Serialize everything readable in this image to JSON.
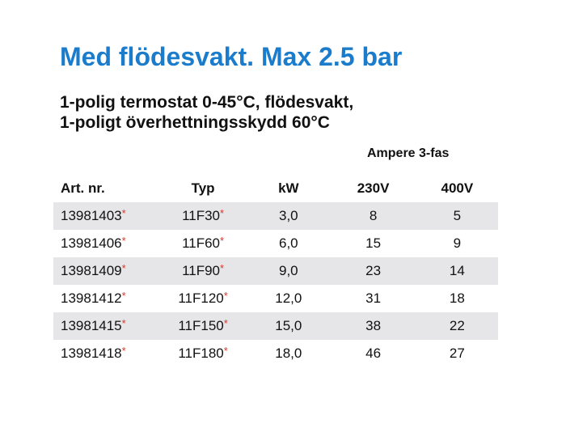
{
  "title": "Med flödesvakt. Max 2.5 bar",
  "subtitle_lines": [
    "1-polig termostat 0-45°C, flödesvakt,",
    "1-poligt överhettningsskydd 60°C"
  ],
  "group_header": "Ampere 3-fas",
  "colors": {
    "title": "#1b7ccc",
    "asterisk": "#d8352a",
    "band": "#e6e6e8"
  },
  "table": {
    "headers": [
      "Art. nr.",
      "Typ",
      "kW",
      "230V",
      "400V"
    ],
    "rows": [
      [
        "13981403",
        "11F30",
        "3,0",
        "8",
        "5"
      ],
      [
        "13981406",
        "11F60",
        "6,0",
        "15",
        "9"
      ],
      [
        "13981409",
        "11F90",
        "9,0",
        "23",
        "14"
      ],
      [
        "13981412",
        "11F120",
        "12,0",
        "31",
        "18"
      ],
      [
        "13981415",
        "11F150",
        "15,0",
        "38",
        "22"
      ],
      [
        "13981418",
        "11F180",
        "18,0",
        "46",
        "27"
      ]
    ],
    "asterisk": "*"
  }
}
